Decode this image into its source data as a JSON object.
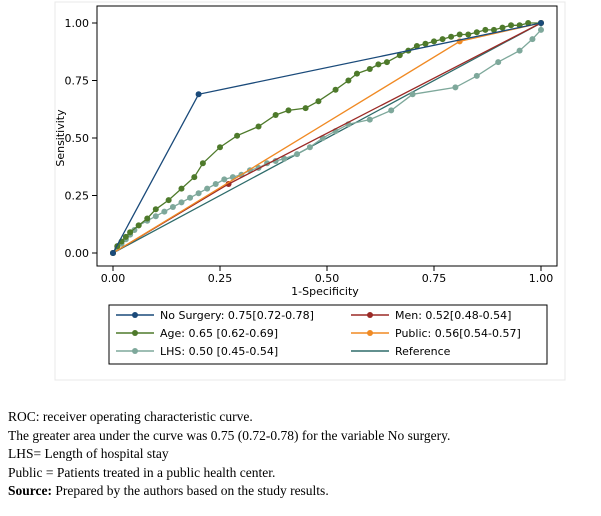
{
  "chart_data": {
    "type": "line",
    "xlabel": "1-Specificity",
    "ylabel": "Sensitivity",
    "xlim": [
      0,
      1
    ],
    "ylim": [
      0,
      1
    ],
    "x_ticks": [
      "0.00",
      "0.25",
      "0.50",
      "0.75",
      "1.00"
    ],
    "y_ticks": [
      "0.00",
      "0.25",
      "0.50",
      "0.75",
      "1.00"
    ],
    "grid": false,
    "legend_position": "bottom",
    "series": [
      {
        "name": "No Surgery: 0.75[0.72-0.78]",
        "color": "#1a4a7a",
        "marker": true,
        "points": [
          [
            0,
            0
          ],
          [
            0.2,
            0.69
          ],
          [
            1,
            1
          ]
        ]
      },
      {
        "name": "Men: 0.52[0.48-0.54]",
        "color": "#9b2a26",
        "marker": true,
        "points": [
          [
            0,
            0
          ],
          [
            0.27,
            0.3
          ],
          [
            1,
            1
          ]
        ]
      },
      {
        "name": "Age: 0.65 [0.62-0.69]",
        "color": "#4e7a2b",
        "marker": true,
        "points": [
          [
            0,
            0
          ],
          [
            0.01,
            0.03
          ],
          [
            0.02,
            0.05
          ],
          [
            0.03,
            0.07
          ],
          [
            0.04,
            0.09
          ],
          [
            0.06,
            0.12
          ],
          [
            0.08,
            0.15
          ],
          [
            0.1,
            0.19
          ],
          [
            0.13,
            0.23
          ],
          [
            0.16,
            0.28
          ],
          [
            0.19,
            0.33
          ],
          [
            0.21,
            0.39
          ],
          [
            0.25,
            0.46
          ],
          [
            0.29,
            0.51
          ],
          [
            0.34,
            0.55
          ],
          [
            0.38,
            0.6
          ],
          [
            0.41,
            0.62
          ],
          [
            0.45,
            0.63
          ],
          [
            0.48,
            0.66
          ],
          [
            0.52,
            0.71
          ],
          [
            0.55,
            0.75
          ],
          [
            0.57,
            0.78
          ],
          [
            0.6,
            0.8
          ],
          [
            0.62,
            0.82
          ],
          [
            0.64,
            0.83
          ],
          [
            0.67,
            0.86
          ],
          [
            0.69,
            0.88
          ],
          [
            0.71,
            0.9
          ],
          [
            0.73,
            0.91
          ],
          [
            0.75,
            0.92
          ],
          [
            0.77,
            0.93
          ],
          [
            0.79,
            0.94
          ],
          [
            0.81,
            0.95
          ],
          [
            0.83,
            0.95
          ],
          [
            0.85,
            0.96
          ],
          [
            0.87,
            0.97
          ],
          [
            0.89,
            0.97
          ],
          [
            0.91,
            0.98
          ],
          [
            0.93,
            0.99
          ],
          [
            0.95,
            0.99
          ],
          [
            0.97,
            1
          ],
          [
            1,
            1
          ]
        ]
      },
      {
        "name": "Public: 0.56[0.54-0.57]",
        "color": "#f08a24",
        "marker": true,
        "points": [
          [
            0,
            0
          ],
          [
            0.81,
            0.92
          ],
          [
            1,
            1
          ]
        ]
      },
      {
        "name": "LHS: 0.50 [0.45-0.54]",
        "color": "#7ea89b",
        "marker": true,
        "points": [
          [
            0,
            0
          ],
          [
            0.01,
            0.02
          ],
          [
            0.02,
            0.04
          ],
          [
            0.03,
            0.06
          ],
          [
            0.04,
            0.08
          ],
          [
            0.05,
            0.1
          ],
          [
            0.06,
            0.12
          ],
          [
            0.08,
            0.14
          ],
          [
            0.1,
            0.16
          ],
          [
            0.12,
            0.18
          ],
          [
            0.14,
            0.2
          ],
          [
            0.16,
            0.22
          ],
          [
            0.18,
            0.24
          ],
          [
            0.2,
            0.26
          ],
          [
            0.22,
            0.28
          ],
          [
            0.24,
            0.3
          ],
          [
            0.26,
            0.32
          ],
          [
            0.28,
            0.33
          ],
          [
            0.3,
            0.34
          ],
          [
            0.32,
            0.36
          ],
          [
            0.34,
            0.37
          ],
          [
            0.36,
            0.39
          ],
          [
            0.38,
            0.4
          ],
          [
            0.4,
            0.41
          ],
          [
            0.43,
            0.43
          ],
          [
            0.46,
            0.46
          ],
          [
            0.49,
            0.5
          ],
          [
            0.52,
            0.53
          ],
          [
            0.55,
            0.56
          ],
          [
            0.6,
            0.58
          ],
          [
            0.65,
            0.62
          ],
          [
            0.7,
            0.69
          ],
          [
            0.8,
            0.72
          ],
          [
            0.85,
            0.77
          ],
          [
            0.9,
            0.83
          ],
          [
            0.95,
            0.88
          ],
          [
            0.98,
            0.93
          ],
          [
            1,
            0.97
          ],
          [
            1,
            1
          ]
        ]
      },
      {
        "name": "Reference",
        "color": "#2e6b6a",
        "marker": false,
        "points": [
          [
            0,
            0
          ],
          [
            1,
            1
          ]
        ]
      }
    ]
  },
  "notes": {
    "line1": "ROC: receiver operating characteristic curve.",
    "line2": "The greater area under the curve was 0.75 (0.72-0.78) for the variable No surgery.",
    "line3": "LHS= Length of hospital stay",
    "line4": "Public = Patients treated in a public health center.",
    "line5_bold": "Source:",
    "line5_rest": " Prepared by the authors based on the study results."
  }
}
